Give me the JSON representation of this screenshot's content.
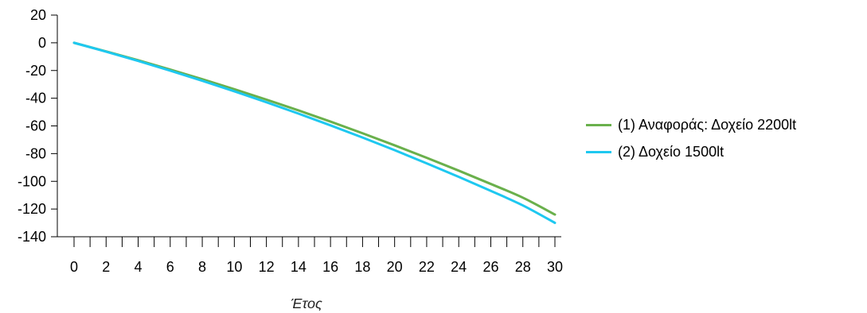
{
  "chart_data": {
    "type": "line",
    "title": "",
    "xlabel": "Έτος",
    "ylabel": "",
    "xlim": [
      0,
      30
    ],
    "ylim": [
      -140,
      20
    ],
    "x_ticks": [
      "0",
      "2",
      "4",
      "6",
      "8",
      "10",
      "12",
      "14",
      "16",
      "18",
      "20",
      "22",
      "24",
      "26",
      "28",
      "30"
    ],
    "y_ticks": [
      "20",
      "0",
      "-20",
      "-40",
      "-60",
      "-80",
      "-100",
      "-120",
      "-140"
    ],
    "x": [
      0,
      2,
      4,
      6,
      8,
      10,
      12,
      14,
      16,
      18,
      20,
      22,
      24,
      26,
      28,
      30
    ],
    "series": [
      {
        "name": "(1) Αναφοράς: Δοχείο 2200lt",
        "color": "#6ab04c",
        "values": [
          0,
          -6.2,
          -12.6,
          -19.3,
          -26.3,
          -33.5,
          -41.0,
          -48.8,
          -56.9,
          -65.3,
          -74.0,
          -83.0,
          -92.3,
          -101.9,
          -111.8,
          -124.0
        ]
      },
      {
        "name": "(2) Δοχείο 1500lt",
        "color": "#1ec8f0",
        "values": [
          0,
          -6.4,
          -13.1,
          -20.1,
          -27.4,
          -35.0,
          -42.9,
          -51.1,
          -59.6,
          -68.4,
          -77.5,
          -87.0,
          -96.8,
          -106.9,
          -117.4,
          -130.0
        ]
      }
    ],
    "legend_position": "right",
    "grid": false
  }
}
